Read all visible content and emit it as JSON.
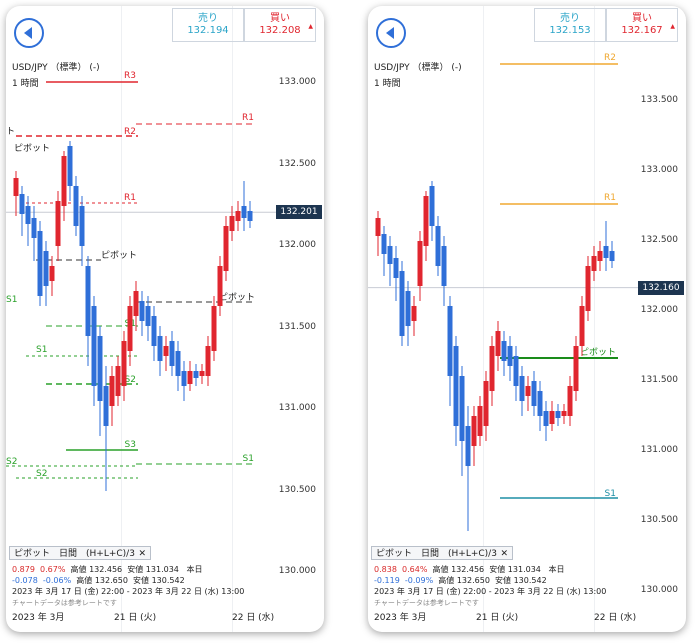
{
  "left": {
    "quote": {
      "sell_label": "売り",
      "sell_price": "132.194",
      "buy_label": "買い",
      "buy_price": "132.208"
    },
    "symbol": "USD/JPY （標準） (-)",
    "timeframe": "1 時間",
    "price_tag": "132.201",
    "y_labels": [
      {
        "value": 133.0,
        "text": "133.000"
      },
      {
        "value": 132.5,
        "text": "132.500"
      },
      {
        "value": 132.0,
        "text": "132.000"
      },
      {
        "value": 131.5,
        "text": "131.500"
      },
      {
        "value": 131.0,
        "text": "131.000"
      },
      {
        "value": 130.5,
        "text": "130.500"
      },
      {
        "value": 130.0,
        "text": "130.000"
      }
    ],
    "pivot_tab": "ピボット　日間　(H+L+C)/3",
    "pivot_close": "✕",
    "stats_row1": {
      "chg": "0.879",
      "pct": "0.67%",
      "high_label": "高値",
      "high": "132.456",
      "low_label": "安値",
      "low": "131.034",
      "day": "本日"
    },
    "stats_row2": {
      "chg": "-0.078",
      "pct": "-0.06%",
      "high_label": "高値",
      "high": "132.650",
      "low_label": "安値",
      "low": "130.542"
    },
    "range": "2023 年 3月 17 日 (金) 22:00 - 2023 年 3月 22 日 (水) 13:00",
    "note": "チャートデータは参考レートです",
    "x_labels": [
      "2023 年 3月",
      "21 日 (火)",
      "22 日 (水)"
    ],
    "level_labels": [
      "R3",
      "R2",
      "R1",
      "R1",
      "ピボット",
      "ピボット",
      "ピボット",
      "S1",
      "S1",
      "S2",
      "S2",
      "S1",
      "S2",
      "S3",
      "S2",
      "S1",
      "ト"
    ]
  },
  "right": {
    "quote": {
      "sell_label": "売り",
      "sell_price": "132.153",
      "buy_label": "買い",
      "buy_price": "132.167"
    },
    "symbol": "USD/JPY （標準） (-)",
    "timeframe": "1 時間",
    "price_tag": "132.160",
    "y_labels": [
      {
        "value": 133.5,
        "text": "133.500"
      },
      {
        "value": 133.0,
        "text": "133.000"
      },
      {
        "value": 132.5,
        "text": "132.500"
      },
      {
        "value": 132.0,
        "text": "132.000"
      },
      {
        "value": 131.5,
        "text": "131.500"
      },
      {
        "value": 131.0,
        "text": "131.000"
      },
      {
        "value": 130.5,
        "text": "130.500"
      },
      {
        "value": 130.0,
        "text": "130.000"
      }
    ],
    "pivot_tab": "ピボット　日間　(H+L+C)/3",
    "pivot_close": "✕",
    "stats_row1": {
      "chg": "0.838",
      "pct": "0.64%",
      "high_label": "高値",
      "high": "132.456",
      "low_label": "安値",
      "low": "131.034",
      "day": "本日"
    },
    "stats_row2": {
      "chg": "-0.119",
      "pct": "-0.09%",
      "high_label": "高値",
      "high": "132.650",
      "low_label": "安値",
      "low": "130.542"
    },
    "range": "2023 年 3月 17 日 (金) 22:00 - 2023 年 3月 22 日 (水) 13:00",
    "note": "チャートデータは参考レートです",
    "x_labels": [
      "2023 年 3月",
      "21 日 (火)",
      "22 日 (水)"
    ],
    "level_labels": [
      "R2",
      "R1",
      "ピボット",
      "S1"
    ]
  },
  "colors": {
    "up": "#e0262f",
    "down": "#2f6fd8",
    "r_left": "#e0262f",
    "s_left": "#2aa12a",
    "r_right": "#f0a830",
    "pivot_right": "#1a8c1a",
    "s_right": "#1f8fa6"
  }
}
